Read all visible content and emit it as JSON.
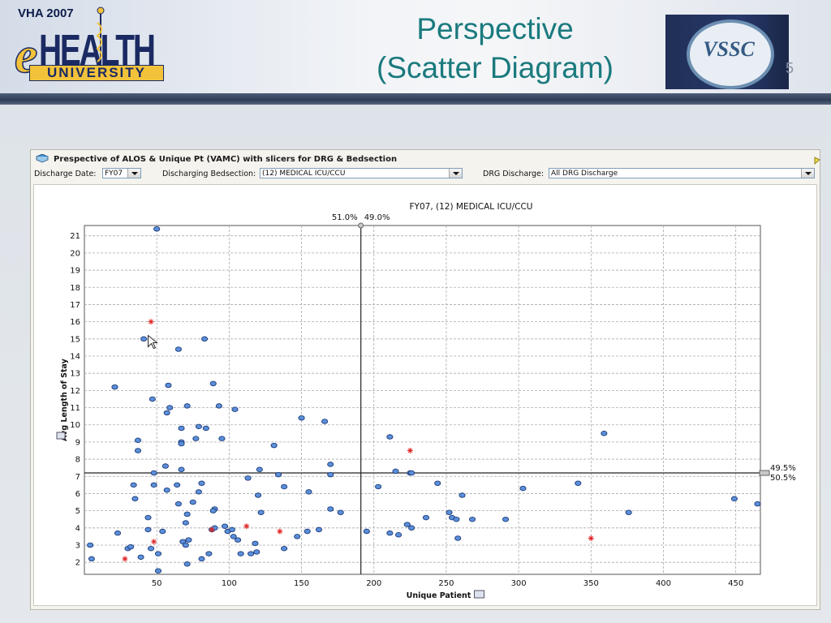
{
  "slide": {
    "title_line1": "Perspective",
    "title_line2": "(Scatter Diagram)",
    "logo_left": {
      "vha": "VHA 2007",
      "e": "e",
      "health": "HEALTH",
      "university": "UNIVERSITY"
    },
    "logo_right": {
      "text": "VSSC"
    },
    "slide_number": "5"
  },
  "window": {
    "title": "Prespective of ALOS & Unique Pt (VAMC) with slicers for DRG & Bedsection",
    "filters": {
      "discharge_date_label": "Discharge Date:",
      "discharge_date_value": "FY07",
      "bedsection_label": "Discharging Bedsection:",
      "bedsection_value": "(12) MEDICAL ICU/CCU",
      "drg_label": "DRG Discharge:",
      "drg_value": "All DRG Discharge"
    }
  },
  "colors": {
    "point_fill": "#5b8fd9",
    "point_stroke": "#1c3a78",
    "highlight": "#e02020",
    "grid": "#aaaaaa"
  },
  "chart_data": {
    "type": "scatter",
    "title": "FY07, (12) MEDICAL ICU/CCU",
    "xlabel": "Unique Patient",
    "ylabel": "Avg Length of Stay",
    "xlim": [
      0,
      467
    ],
    "ylim": [
      1.3,
      21.6
    ],
    "xticks": [
      50,
      100,
      150,
      200,
      250,
      300,
      350,
      400,
      450
    ],
    "yticks": [
      2,
      3,
      4,
      5,
      6,
      7,
      8,
      9,
      10,
      11,
      12,
      13,
      14,
      15,
      16,
      17,
      18,
      19,
      20,
      21
    ],
    "grid": true,
    "divider_x": 191,
    "divider_y": 7.2,
    "top_split": {
      "left": "51.0%",
      "right": "49.0%"
    },
    "right_split": {
      "top": "49.5%",
      "bottom": "50.5%"
    },
    "series": [
      {
        "marker": "dot",
        "points": [
          [
            50,
            21.4
          ],
          [
            41,
            15
          ],
          [
            83,
            15
          ],
          [
            65,
            14.4
          ],
          [
            21,
            12.2
          ],
          [
            89,
            12.4
          ],
          [
            58,
            12.3
          ],
          [
            47,
            11.5
          ],
          [
            59,
            11
          ],
          [
            71,
            11.1
          ],
          [
            93,
            11.1
          ],
          [
            104,
            10.9
          ],
          [
            57,
            10.7
          ],
          [
            150,
            10.4
          ],
          [
            166,
            10.2
          ],
          [
            79,
            9.9
          ],
          [
            67,
            9.8
          ],
          [
            84,
            9.8
          ],
          [
            67,
            9
          ],
          [
            67,
            8.9
          ],
          [
            77,
            9.2
          ],
          [
            95,
            9.2
          ],
          [
            37,
            9.1
          ],
          [
            37,
            8.5
          ],
          [
            131,
            8.8
          ],
          [
            211,
            9.3
          ],
          [
            359,
            9.5
          ],
          [
            56,
            7.6
          ],
          [
            67,
            7.4
          ],
          [
            48,
            7.2
          ],
          [
            121,
            7.4
          ],
          [
            134,
            7.1
          ],
          [
            170,
            7.7
          ],
          [
            170,
            7.1
          ],
          [
            215,
            7.3
          ],
          [
            225,
            7.2
          ],
          [
            226,
            7.2
          ],
          [
            113,
            6.9
          ],
          [
            34,
            6.5
          ],
          [
            48,
            6.5
          ],
          [
            81,
            6.6
          ],
          [
            64,
            6.5
          ],
          [
            57,
            6.2
          ],
          [
            79,
            6.1
          ],
          [
            120,
            5.9
          ],
          [
            138,
            6.4
          ],
          [
            155,
            6.1
          ],
          [
            203,
            6.4
          ],
          [
            244,
            6.6
          ],
          [
            261,
            5.9
          ],
          [
            303,
            6.3
          ],
          [
            341,
            6.6
          ],
          [
            35,
            5.7
          ],
          [
            65,
            5.4
          ],
          [
            71,
            4.8
          ],
          [
            75,
            5.5
          ],
          [
            90,
            5.1
          ],
          [
            89,
            5
          ],
          [
            122,
            4.9
          ],
          [
            170,
            5.1
          ],
          [
            177,
            4.9
          ],
          [
            252,
            4.9
          ],
          [
            254,
            4.6
          ],
          [
            257,
            4.5
          ],
          [
            268,
            4.5
          ],
          [
            291,
            4.5
          ],
          [
            376,
            4.9
          ],
          [
            449,
            5.7
          ],
          [
            465,
            5.4
          ],
          [
            44,
            4.6
          ],
          [
            23,
            3.7
          ],
          [
            44,
            3.9
          ],
          [
            54,
            3.8
          ],
          [
            68,
            3.2
          ],
          [
            70,
            3
          ],
          [
            72,
            3.3
          ],
          [
            70,
            4.3
          ],
          [
            88,
            3.9
          ],
          [
            90,
            4
          ],
          [
            97,
            4.1
          ],
          [
            99,
            3.8
          ],
          [
            102,
            3.9
          ],
          [
            106,
            3.3
          ],
          [
            103,
            3.5
          ],
          [
            115,
            2.5
          ],
          [
            118,
            3.1
          ],
          [
            119,
            2.6
          ],
          [
            108,
            2.5
          ],
          [
            138,
            2.8
          ],
          [
            147,
            3.5
          ],
          [
            154,
            3.8
          ],
          [
            162,
            3.9
          ],
          [
            195,
            3.8
          ],
          [
            211,
            3.7
          ],
          [
            217,
            3.6
          ],
          [
            223,
            4.2
          ],
          [
            226,
            4.0
          ],
          [
            236,
            4.6
          ],
          [
            258,
            3.4
          ],
          [
            4,
            3.0
          ],
          [
            5,
            2.2
          ],
          [
            30,
            2.8
          ],
          [
            32,
            2.9
          ],
          [
            39,
            2.3
          ],
          [
            46,
            2.8
          ],
          [
            51,
            2.5
          ],
          [
            71,
            1.9
          ],
          [
            81,
            2.2
          ],
          [
            86,
            2.5
          ],
          [
            51,
            1.5
          ]
        ]
      },
      {
        "marker": "star",
        "color": "#e02020",
        "points": [
          [
            46,
            16
          ],
          [
            225,
            8.5
          ],
          [
            48,
            3.2
          ],
          [
            28,
            2.2
          ],
          [
            88,
            3.9
          ],
          [
            112,
            4.1
          ],
          [
            135,
            3.8
          ],
          [
            350,
            3.4
          ]
        ]
      }
    ]
  }
}
